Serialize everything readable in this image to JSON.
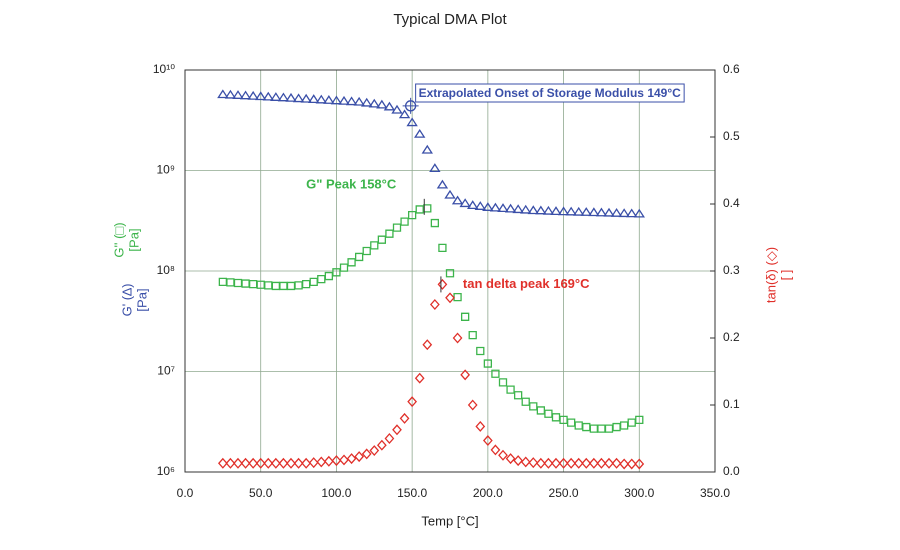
{
  "chart_data": {
    "type": "scatter",
    "title": "Typical DMA Plot",
    "xlabel": "Temp [°C]",
    "ylabels": [
      {
        "lines": [
          "G' (∆)",
          "[Pa]"
        ],
        "color": "#3a4fa8"
      },
      {
        "lines": [
          "G'' (□)",
          "[Pa]"
        ],
        "color": "#3cb44b"
      }
    ],
    "y2label": {
      "lines": [
        "tan(δ) (◇)",
        "[ ]"
      ],
      "color": "#e0302a"
    },
    "xlim": [
      0,
      350
    ],
    "xticks": [
      {
        "value": 0,
        "label": "0.0"
      },
      {
        "value": 50,
        "label": "50.0"
      },
      {
        "value": 100,
        "label": "100.0"
      },
      {
        "value": 150,
        "label": "150.0"
      },
      {
        "value": 200,
        "label": "200.0"
      },
      {
        "value": 250,
        "label": "250.0"
      },
      {
        "value": 300,
        "label": "300.0"
      },
      {
        "value": 350,
        "label": "350.0"
      }
    ],
    "ylim": [
      1000000.0,
      10000000000.0
    ],
    "yscale": "log",
    "yticks": [
      {
        "value": 1000000.0,
        "label": "10⁶"
      },
      {
        "value": 10000000.0,
        "label": "10⁷"
      },
      {
        "value": 100000000.0,
        "label": "10⁸"
      },
      {
        "value": 1000000000.0,
        "label": "10⁹"
      },
      {
        "value": 10000000000.0,
        "label": "10¹⁰"
      }
    ],
    "y2lim": [
      0,
      0.6
    ],
    "y2ticks": [
      {
        "value": 0,
        "label": "0.0"
      },
      0.1,
      0.2,
      0.3,
      0.4,
      0.5,
      0.6
    ],
    "grid": true,
    "x": [
      25,
      30,
      35,
      40,
      45,
      50,
      55,
      60,
      65,
      70,
      75,
      80,
      85,
      90,
      95,
      100,
      105,
      110,
      115,
      120,
      125,
      130,
      135,
      140,
      145,
      150,
      155,
      160,
      165,
      170,
      175,
      180,
      185,
      190,
      195,
      200,
      205,
      210,
      215,
      220,
      225,
      230,
      235,
      240,
      245,
      250,
      255,
      260,
      265,
      270,
      275,
      280,
      285,
      290,
      295,
      300
    ],
    "series": [
      {
        "marker": "triangle",
        "color": "#3a4fa8",
        "values": [
          5700000000.0,
          5650000000.0,
          5600000000.0,
          5550000000.0,
          5500000000.0,
          5450000000.0,
          5400000000.0,
          5350000000.0,
          5300000000.0,
          5250000000.0,
          5200000000.0,
          5150000000.0,
          5100000000.0,
          5050000000.0,
          5000000000.0,
          4950000000.0,
          4900000000.0,
          4850000000.0,
          4800000000.0,
          4700000000.0,
          4600000000.0,
          4500000000.0,
          4300000000.0,
          4000000000.0,
          3600000000.0,
          3000000000.0,
          2300000000.0,
          1600000000.0,
          1050000000.0,
          720000000.0,
          570000000.0,
          500000000.0,
          470000000.0,
          450000000.0,
          440000000.0,
          430000000.0,
          425000000.0,
          420000000.0,
          415000000.0,
          410000000.0,
          405000000.0,
          400000000.0,
          398000000.0,
          395000000.0,
          392000000.0,
          390000000.0,
          388000000.0,
          386000000.0,
          384000000.0,
          382000000.0,
          380000000.0,
          378000000.0,
          376000000.0,
          374000000.0,
          372000000.0,
          370000000.0
        ]
      },
      {
        "marker": "square",
        "color": "#3cb44b",
        "values": [
          78000000.0,
          77000000.0,
          76000000.0,
          75000000.0,
          74000000.0,
          73000000.0,
          72000000.0,
          71000000.0,
          71000000.0,
          71000000.0,
          72000000.0,
          74000000.0,
          78000000.0,
          83000000.0,
          89000000.0,
          97000000.0,
          108000000.0,
          122000000.0,
          138000000.0,
          158000000.0,
          180000000.0,
          205000000.0,
          235000000.0,
          270000000.0,
          310000000.0,
          360000000.0,
          410000000.0,
          420000000.0,
          300000000.0,
          170000000.0,
          95000000.0,
          55000000.0,
          35000000.0,
          23000000.0,
          16000000.0,
          12000000.0,
          9500000.0,
          7800000.0,
          6600000.0,
          5800000.0,
          5000000.0,
          4500000.0,
          4100000.0,
          3800000.0,
          3500000.0,
          3300000.0,
          3100000.0,
          2900000.0,
          2800000.0,
          2700000.0,
          2700000.0,
          2700000.0,
          2800000.0,
          2900000.0,
          3100000.0,
          3300000.0
        ]
      },
      {
        "marker": "diamond",
        "color": "#e0302a",
        "axis": "y2",
        "values": [
          0.013,
          0.013,
          0.013,
          0.013,
          0.013,
          0.013,
          0.013,
          0.013,
          0.013,
          0.013,
          0.013,
          0.013,
          0.014,
          0.015,
          0.016,
          0.017,
          0.018,
          0.02,
          0.023,
          0.027,
          0.032,
          0.04,
          0.05,
          0.063,
          0.08,
          0.105,
          0.14,
          0.19,
          0.25,
          0.28,
          0.26,
          0.2,
          0.145,
          0.1,
          0.068,
          0.047,
          0.033,
          0.025,
          0.02,
          0.017,
          0.015,
          0.014,
          0.013,
          0.013,
          0.013,
          0.013,
          0.013,
          0.013,
          0.013,
          0.013,
          0.013,
          0.013,
          0.013,
          0.012,
          0.012,
          0.012
        ]
      }
    ],
    "annotations": [
      {
        "text": "Extrapolated Onset of Storage Modulus 149°C",
        "x": 149,
        "y": 4400000000.0,
        "color": "#3a4fa8",
        "boxed": true
      },
      {
        "text": "G\" Peak 158°C",
        "x": 158,
        "y": 435000000.0,
        "color": "#3cb44b"
      },
      {
        "text": "tan delta peak 169°C",
        "x": 169,
        "y": 0.28,
        "axis": "y2",
        "color": "#e0302a"
      }
    ]
  }
}
